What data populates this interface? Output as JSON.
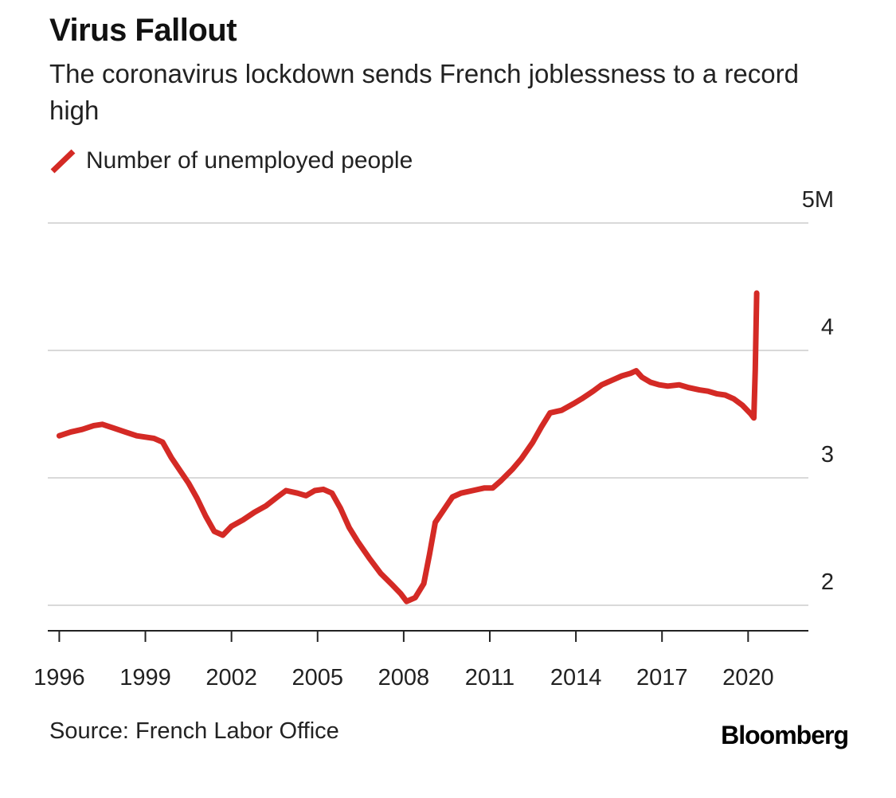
{
  "header": {
    "title": "Virus Fallout",
    "subtitle": "The coronavirus lockdown sends French joblessness to a record high"
  },
  "legend": {
    "label": "Number of unemployed people",
    "color": "#d42a25"
  },
  "footer": {
    "source": "Source: French Labor Office",
    "brand": "Bloomberg"
  },
  "chart_data": {
    "type": "line",
    "title": "Virus Fallout",
    "subtitle": "The coronavirus lockdown sends French joblessness to a record high",
    "xlabel": "",
    "ylabel": "",
    "xlim": [
      1995.6,
      2022.1
    ],
    "ylim": [
      1.8,
      5.0
    ],
    "y_ticks": [
      2,
      3,
      4,
      5
    ],
    "y_tick_labels": [
      "2",
      "3",
      "4",
      "5M"
    ],
    "x_ticks": [
      1996,
      1999,
      2002,
      2005,
      2008,
      2011,
      2014,
      2017,
      2020
    ],
    "x_tick_labels": [
      "1996",
      "1999",
      "2002",
      "2005",
      "2008",
      "2011",
      "2014",
      "2017",
      "2020"
    ],
    "grid": "horizontal",
    "legend_position": "top-left",
    "series": [
      {
        "name": "Number of unemployed people",
        "color": "#d42a25",
        "points": [
          [
            1996.0,
            3.33
          ],
          [
            1996.4,
            3.36
          ],
          [
            1996.8,
            3.38
          ],
          [
            1997.2,
            3.41
          ],
          [
            1997.5,
            3.42
          ],
          [
            1997.9,
            3.39
          ],
          [
            1998.3,
            3.36
          ],
          [
            1998.7,
            3.33
          ],
          [
            1999.0,
            3.32
          ],
          [
            1999.3,
            3.31
          ],
          [
            1999.6,
            3.28
          ],
          [
            1999.9,
            3.16
          ],
          [
            2000.2,
            3.06
          ],
          [
            2000.5,
            2.96
          ],
          [
            2000.8,
            2.84
          ],
          [
            2001.1,
            2.7
          ],
          [
            2001.4,
            2.58
          ],
          [
            2001.7,
            2.55
          ],
          [
            2002.0,
            2.62
          ],
          [
            2002.4,
            2.67
          ],
          [
            2002.8,
            2.73
          ],
          [
            2003.2,
            2.78
          ],
          [
            2003.6,
            2.85
          ],
          [
            2003.9,
            2.9
          ],
          [
            2004.3,
            2.88
          ],
          [
            2004.6,
            2.86
          ],
          [
            2004.9,
            2.9
          ],
          [
            2005.2,
            2.91
          ],
          [
            2005.5,
            2.88
          ],
          [
            2005.8,
            2.76
          ],
          [
            2006.1,
            2.61
          ],
          [
            2006.4,
            2.5
          ],
          [
            2006.8,
            2.37
          ],
          [
            2007.2,
            2.25
          ],
          [
            2007.6,
            2.16
          ],
          [
            2007.9,
            2.09
          ],
          [
            2008.1,
            2.03
          ],
          [
            2008.4,
            2.06
          ],
          [
            2008.7,
            2.17
          ],
          [
            2008.9,
            2.4
          ],
          [
            2009.1,
            2.65
          ],
          [
            2009.4,
            2.75
          ],
          [
            2009.7,
            2.85
          ],
          [
            2010.0,
            2.88
          ],
          [
            2010.4,
            2.9
          ],
          [
            2010.8,
            2.92
          ],
          [
            2011.1,
            2.92
          ],
          [
            2011.4,
            2.98
          ],
          [
            2011.8,
            3.07
          ],
          [
            2012.1,
            3.15
          ],
          [
            2012.5,
            3.28
          ],
          [
            2012.8,
            3.4
          ],
          [
            2013.1,
            3.51
          ],
          [
            2013.5,
            3.53
          ],
          [
            2013.9,
            3.58
          ],
          [
            2014.2,
            3.62
          ],
          [
            2014.6,
            3.68
          ],
          [
            2014.9,
            3.73
          ],
          [
            2015.3,
            3.77
          ],
          [
            2015.6,
            3.8
          ],
          [
            2015.9,
            3.82
          ],
          [
            2016.1,
            3.84
          ],
          [
            2016.3,
            3.79
          ],
          [
            2016.6,
            3.75
          ],
          [
            2016.9,
            3.73
          ],
          [
            2017.2,
            3.72
          ],
          [
            2017.6,
            3.73
          ],
          [
            2017.9,
            3.71
          ],
          [
            2018.3,
            3.69
          ],
          [
            2018.6,
            3.68
          ],
          [
            2018.9,
            3.66
          ],
          [
            2019.2,
            3.65
          ],
          [
            2019.5,
            3.62
          ],
          [
            2019.8,
            3.57
          ],
          [
            2020.1,
            3.5
          ],
          [
            2020.2,
            3.47
          ],
          [
            2020.25,
            3.85
          ],
          [
            2020.3,
            4.45
          ]
        ]
      }
    ]
  }
}
